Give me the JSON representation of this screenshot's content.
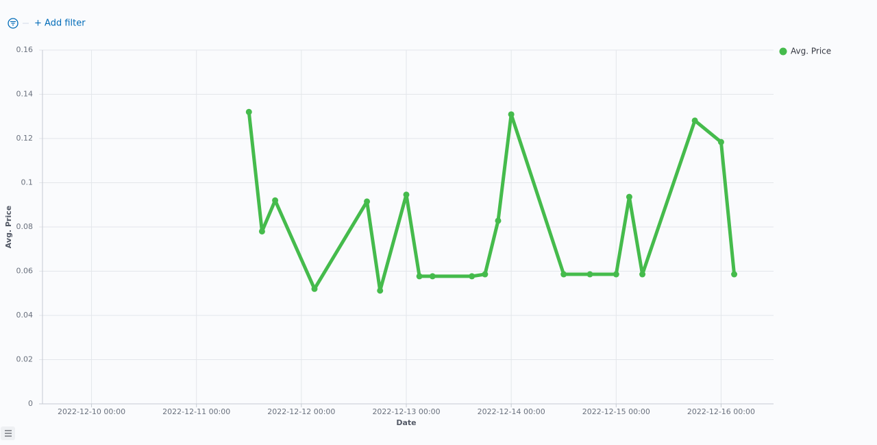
{
  "filter_bar": {
    "add_filter": "+ Add filter"
  },
  "chart_data": {
    "type": "line",
    "x_label": "Date",
    "y_label": "Avg. Price",
    "x": [
      "2022-12-11 12:00",
      "2022-12-11 15:00",
      "2022-12-11 18:00",
      "2022-12-12 03:00",
      "2022-12-12 15:00",
      "2022-12-12 18:00",
      "2022-12-13 00:00",
      "2022-12-13 03:00",
      "2022-12-13 06:00",
      "2022-12-13 15:00",
      "2022-12-13 18:00",
      "2022-12-13 21:00",
      "2022-12-14 00:00",
      "2022-12-14 12:00",
      "2022-12-14 18:00",
      "2022-12-15 00:00",
      "2022-12-15 03:00",
      "2022-12-15 06:00",
      "2022-12-15 18:00",
      "2022-12-16 00:00",
      "2022-12-16 03:00"
    ],
    "series": [
      {
        "name": "Avg. Price",
        "color": "#45bb4c",
        "values": [
          0.132,
          0.078,
          0.092,
          0.052,
          0.0915,
          0.0512,
          0.0946,
          0.0577,
          0.0577,
          0.0577,
          0.0586,
          0.0828,
          0.1309,
          0.0586,
          0.0586,
          0.0586,
          0.0936,
          0.0586,
          0.1281,
          0.1184,
          0.0586
        ]
      }
    ],
    "xlim": [
      "2022-12-09 12:00",
      "2022-12-16 12:00"
    ],
    "xticks": [
      "2022-12-10 00:00",
      "2022-12-11 00:00",
      "2022-12-12 00:00",
      "2022-12-13 00:00",
      "2022-12-14 00:00",
      "2022-12-15 00:00",
      "2022-12-16 00:00"
    ],
    "ylim": [
      0,
      0.16
    ],
    "yticks": [
      0,
      0.02,
      0.04,
      0.06,
      0.08,
      0.1,
      0.12,
      0.14,
      0.16
    ],
    "grid": true,
    "legend": "top-right"
  }
}
